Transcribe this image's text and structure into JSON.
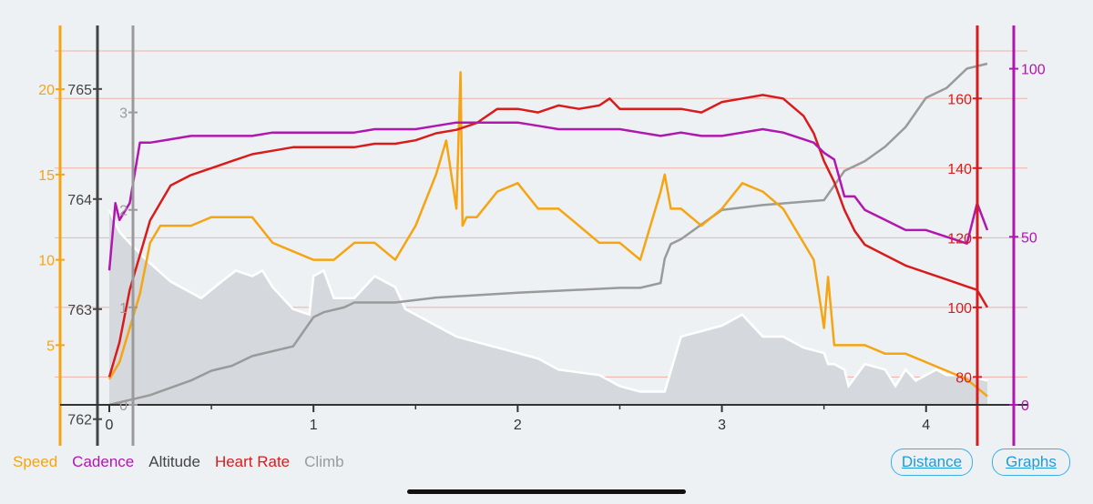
{
  "colors": {
    "speed": "#f5a412",
    "cadence": "#b016b0",
    "altitude": "#444444",
    "heart_rate": "#d81c1c",
    "climb": "#9a9a9a",
    "altitude_fill": "#d5d8dd"
  },
  "legend": {
    "speed": "Speed",
    "cadence": "Cadence",
    "altitude": "Altitude",
    "heart_rate": "Heart Rate",
    "climb": "Climb"
  },
  "buttons": {
    "distance": "Distance",
    "graphs": "Graphs"
  },
  "chart_data": {
    "type": "line",
    "x_range": [
      0,
      4.3
    ],
    "x_ticks": [
      "0",
      "1",
      "2",
      "3",
      "4"
    ],
    "axes": {
      "speed": {
        "range": [
          1.5,
          21.5
        ],
        "ticks": [
          "5",
          "10",
          "15",
          "20"
        ]
      },
      "altitude": {
        "range": [
          762.13,
          765.23
        ],
        "ticks": [
          "762",
          "763",
          "764",
          "765"
        ]
      },
      "climb": {
        "range": [
          0,
          3.5
        ],
        "ticks": [
          "0",
          "1",
          "2",
          "3"
        ]
      },
      "heart_rate": {
        "range": [
          72,
          170
        ],
        "ticks": [
          "80",
          "100",
          "120",
          "140",
          "160"
        ]
      },
      "cadence": {
        "range": [
          0,
          101.5
        ],
        "ticks": [
          "0",
          "50",
          "100"
        ]
      }
    },
    "series": [
      {
        "key": "altitude",
        "axis": "altitude",
        "x": [
          0,
          0.05,
          0.1,
          0.18,
          0.3,
          0.45,
          0.55,
          0.62,
          0.7,
          0.75,
          0.8,
          0.9,
          0.98,
          1.0,
          1.05,
          1.1,
          1.2,
          1.3,
          1.4,
          1.45,
          1.5,
          1.6,
          1.7,
          1.9,
          2.0,
          2.1,
          2.2,
          2.4,
          2.5,
          2.6,
          2.65,
          2.7,
          2.72,
          2.8,
          3.0,
          3.1,
          3.2,
          3.3,
          3.4,
          3.5,
          3.52,
          3.55,
          3.6,
          3.62,
          3.7,
          3.8,
          3.85,
          3.9,
          3.95,
          4.0,
          4.05,
          4.1,
          4.2,
          4.3
        ],
        "y": [
          763.9,
          763.7,
          763.6,
          763.45,
          763.25,
          763.1,
          763.25,
          763.35,
          763.3,
          763.35,
          763.2,
          763.0,
          762.95,
          763.3,
          763.35,
          763.1,
          763.1,
          763.3,
          763.2,
          763.0,
          762.95,
          762.85,
          762.75,
          762.65,
          762.6,
          762.55,
          762.45,
          762.4,
          762.3,
          762.25,
          762.25,
          762.25,
          762.25,
          762.75,
          762.85,
          762.95,
          762.75,
          762.75,
          762.65,
          762.6,
          762.5,
          762.5,
          762.45,
          762.3,
          762.5,
          762.45,
          762.3,
          762.45,
          762.35,
          762.4,
          762.45,
          762.4,
          762.4,
          762.35
        ]
      },
      {
        "key": "climb",
        "axis": "climb",
        "x": [
          0,
          0.2,
          0.4,
          0.5,
          0.6,
          0.7,
          0.9,
          1.0,
          1.05,
          1.15,
          1.2,
          1.4,
          1.6,
          2.0,
          2.5,
          2.6,
          2.7,
          2.72,
          2.75,
          2.8,
          2.9,
          3.0,
          3.2,
          3.5,
          3.6,
          3.7,
          3.8,
          3.9,
          4.0,
          4.1,
          4.2,
          4.3
        ],
        "y": [
          0,
          0.1,
          0.25,
          0.35,
          0.4,
          0.5,
          0.6,
          0.9,
          0.95,
          1.0,
          1.05,
          1.05,
          1.1,
          1.15,
          1.2,
          1.2,
          1.25,
          1.5,
          1.65,
          1.7,
          1.85,
          2.0,
          2.05,
          2.1,
          2.4,
          2.5,
          2.65,
          2.85,
          3.15,
          3.25,
          3.45,
          3.5
        ]
      },
      {
        "key": "speed",
        "axis": "speed",
        "x": [
          0,
          0.05,
          0.1,
          0.15,
          0.2,
          0.25,
          0.3,
          0.4,
          0.5,
          0.6,
          0.7,
          0.8,
          0.9,
          1.0,
          1.1,
          1.2,
          1.3,
          1.4,
          1.5,
          1.6,
          1.65,
          1.7,
          1.72,
          1.73,
          1.75,
          1.8,
          1.9,
          2.0,
          2.1,
          2.2,
          2.3,
          2.4,
          2.5,
          2.6,
          2.7,
          2.72,
          2.75,
          2.8,
          2.9,
          3.0,
          3.1,
          3.2,
          3.3,
          3.4,
          3.45,
          3.5,
          3.52,
          3.55,
          3.6,
          3.7,
          3.8,
          3.9,
          4.0,
          4.1,
          4.2,
          4.3
        ],
        "y": [
          3,
          4,
          6,
          8,
          11,
          12,
          12,
          12,
          12.5,
          12.5,
          12.5,
          11,
          10.5,
          10,
          10,
          11,
          11,
          10,
          12,
          15,
          17,
          13,
          21,
          12,
          12.5,
          12.5,
          14,
          14.5,
          13,
          13,
          12,
          11,
          11,
          10,
          14,
          15,
          13,
          13,
          12,
          13,
          14.5,
          14,
          13,
          11,
          10,
          6,
          9,
          5,
          5,
          5,
          4.5,
          4.5,
          4,
          3.5,
          3,
          2
        ]
      },
      {
        "key": "heart_rate",
        "axis": "heart_rate",
        "x": [
          0,
          0.05,
          0.1,
          0.15,
          0.2,
          0.25,
          0.3,
          0.4,
          0.5,
          0.6,
          0.7,
          0.8,
          0.9,
          1.0,
          1.1,
          1.2,
          1.3,
          1.4,
          1.5,
          1.6,
          1.7,
          1.75,
          1.8,
          1.9,
          2.0,
          2.1,
          2.2,
          2.3,
          2.4,
          2.45,
          2.5,
          2.6,
          2.7,
          2.8,
          2.9,
          3.0,
          3.1,
          3.2,
          3.3,
          3.4,
          3.45,
          3.5,
          3.55,
          3.6,
          3.65,
          3.7,
          3.8,
          3.9,
          4.0,
          4.1,
          4.2,
          4.25,
          4.3
        ],
        "y": [
          80,
          90,
          105,
          115,
          125,
          130,
          135,
          138,
          140,
          142,
          144,
          145,
          146,
          146,
          146,
          146,
          147,
          147,
          148,
          150,
          151,
          152,
          153,
          157,
          157,
          156,
          158,
          157,
          158,
          160,
          157,
          157,
          157,
          157,
          156,
          159,
          160,
          161,
          160,
          155,
          150,
          142,
          136,
          128,
          122,
          118,
          115,
          112,
          110,
          108,
          106,
          105,
          100
        ]
      },
      {
        "key": "cadence",
        "axis": "cadence",
        "x": [
          0,
          0.03,
          0.05,
          0.1,
          0.15,
          0.2,
          0.3,
          0.4,
          0.5,
          0.6,
          0.7,
          0.8,
          0.9,
          1.0,
          1.1,
          1.2,
          1.3,
          1.4,
          1.5,
          1.6,
          1.7,
          1.8,
          1.9,
          2.0,
          2.1,
          2.2,
          2.3,
          2.4,
          2.5,
          2.6,
          2.7,
          2.8,
          2.9,
          3.0,
          3.1,
          3.2,
          3.3,
          3.4,
          3.45,
          3.5,
          3.55,
          3.6,
          3.65,
          3.7,
          3.8,
          3.9,
          4.0,
          4.1,
          4.2,
          4.25,
          4.3
        ],
        "y": [
          40,
          60,
          55,
          60,
          78,
          78,
          79,
          80,
          80,
          80,
          80,
          81,
          81,
          81,
          81,
          81,
          82,
          82,
          82,
          83,
          84,
          84,
          84,
          84,
          83,
          82,
          82,
          82,
          82,
          81,
          80,
          81,
          80,
          80,
          81,
          82,
          81,
          79,
          78,
          75,
          73,
          62,
          62,
          58,
          55,
          52,
          52,
          50,
          48,
          60,
          52
        ]
      }
    ]
  }
}
